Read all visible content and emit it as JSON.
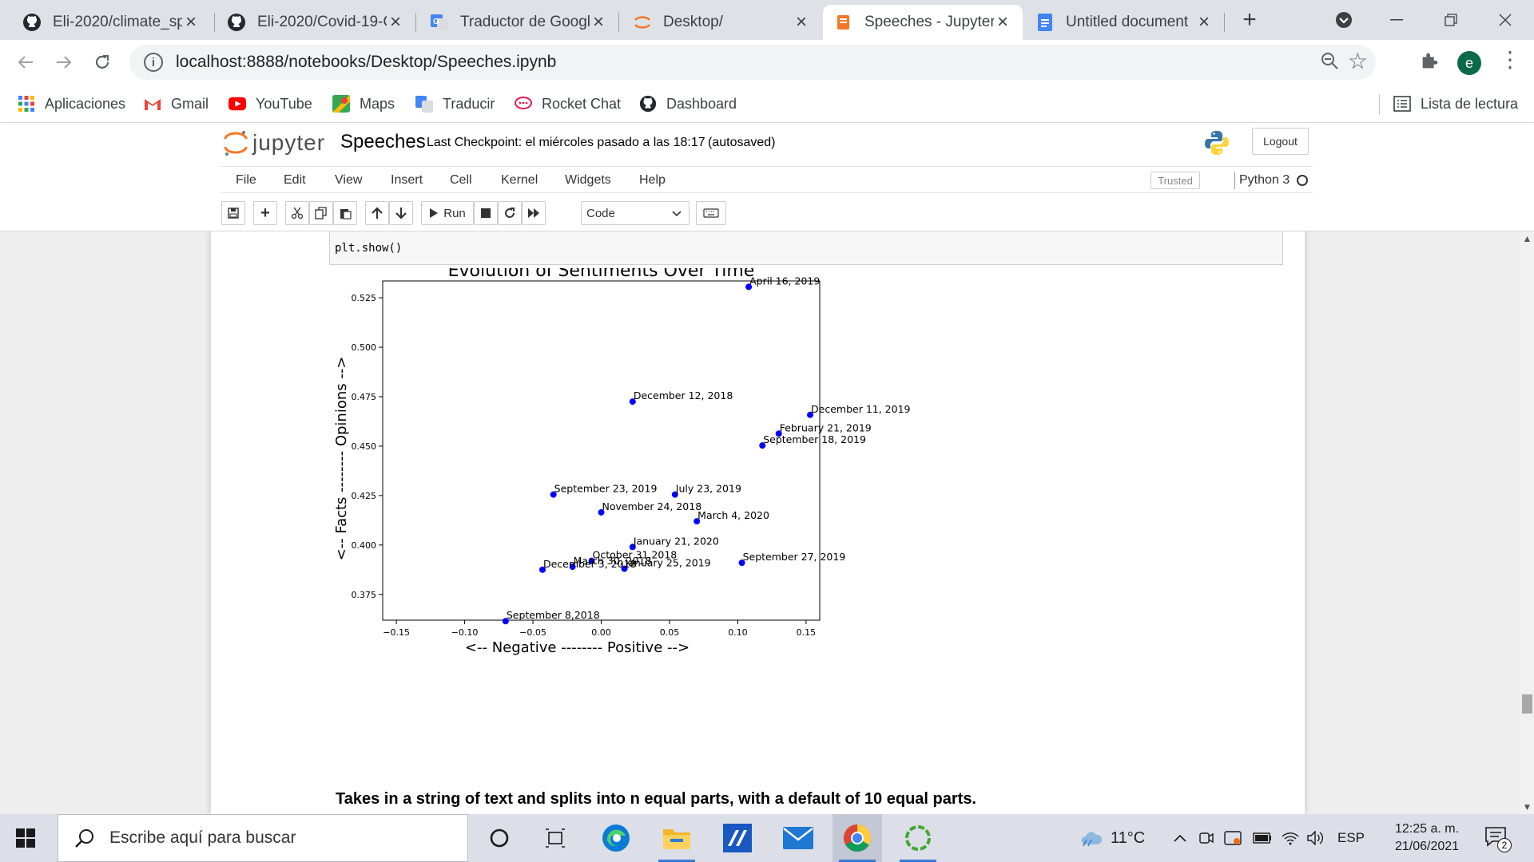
{
  "browser": {
    "tabs": [
      {
        "title": "Eli-2020/climate_sp",
        "icon": "github-icon"
      },
      {
        "title": "Eli-2020/Covid-19-C",
        "icon": "github-icon"
      },
      {
        "title": "Traductor de Googl",
        "icon": "google-translate-icon"
      },
      {
        "title": "Desktop/",
        "icon": "jupyter-icon"
      },
      {
        "title": "Speeches - Jupyter",
        "icon": "jupyter-notebook-icon"
      },
      {
        "title": "Untitled document",
        "icon": "google-docs-icon"
      }
    ],
    "url": "localhost:8888/notebooks/Desktop/Speeches.ipynb",
    "profile_initial": "e",
    "bookmarks": [
      {
        "label": "Aplicaciones",
        "icon": "apps-grid-icon"
      },
      {
        "label": "Gmail",
        "icon": "gmail-icon"
      },
      {
        "label": "YouTube",
        "icon": "youtube-icon"
      },
      {
        "label": "Maps",
        "icon": "maps-icon"
      },
      {
        "label": "Traducir",
        "icon": "translate-icon"
      },
      {
        "label": "Rocket Chat",
        "icon": "rocket-chat-icon"
      },
      {
        "label": "Dashboard",
        "icon": "github-icon"
      }
    ],
    "reading_list": "Lista de lectura"
  },
  "jupyter": {
    "logo_text": "jupyter",
    "notebook_name": "Speeches",
    "checkpoint": "Last Checkpoint: el miércoles pasado a las 18:17",
    "autosave": "(autosaved)",
    "logout": "Logout",
    "menu": [
      "File",
      "Edit",
      "View",
      "Insert",
      "Cell",
      "Kernel",
      "Widgets",
      "Help"
    ],
    "trusted": "Trusted",
    "kernel": "Python 3",
    "run_label": "Run",
    "cell_type": "Code",
    "code_line": "plt.show()",
    "markdown_text": "Takes in a string of text and splits into n equal parts, with a default of 10 equal parts."
  },
  "chart_data": {
    "type": "scatter",
    "title": "Evolution of Sentiments Over Time",
    "xlabel": "<-- Negative -------- Positive -->",
    "ylabel": "<-- Facts -------- Opinions -->",
    "xlim": [
      -0.16,
      0.16
    ],
    "ylim": [
      0.362,
      0.5335
    ],
    "xticks": [
      -0.15,
      -0.1,
      -0.05,
      0.0,
      0.05,
      0.1,
      0.15
    ],
    "xtick_labels": [
      "−0.15",
      "−0.10",
      "−0.05",
      "0.00",
      "0.05",
      "0.10",
      "0.15"
    ],
    "yticks": [
      0.375,
      0.4,
      0.425,
      0.45,
      0.475,
      0.5,
      0.525
    ],
    "ytick_labels": [
      "0.375",
      "0.400",
      "0.425",
      "0.450",
      "0.475",
      "0.500",
      "0.525"
    ],
    "color": "#0000ff",
    "points": [
      {
        "label": "April 16, 2019",
        "x": 0.108,
        "y": 0.5305
      },
      {
        "label": "December 12, 2018",
        "x": 0.023,
        "y": 0.4725
      },
      {
        "label": "December 11, 2019",
        "x": 0.153,
        "y": 0.4658
      },
      {
        "label": "February 21, 2019",
        "x": 0.13,
        "y": 0.4563
      },
      {
        "label": "September 18, 2019",
        "x": 0.118,
        "y": 0.4503
      },
      {
        "label": "September 23, 2019",
        "x": -0.035,
        "y": 0.4255
      },
      {
        "label": "July 23, 2019",
        "x": 0.054,
        "y": 0.4255
      },
      {
        "label": "November 24, 2018",
        "x": 0.0,
        "y": 0.4165
      },
      {
        "label": "March 4, 2020",
        "x": 0.07,
        "y": 0.412
      },
      {
        "label": "January 21, 2020",
        "x": 0.023,
        "y": 0.399
      },
      {
        "label": "October 31,2018",
        "x": -0.007,
        "y": 0.392
      },
      {
        "label": "March 30, 2018",
        "x": -0.021,
        "y": 0.389
      },
      {
        "label": "January 25, 2019",
        "x": 0.017,
        "y": 0.388
      },
      {
        "label": "December 3, 2018",
        "x": -0.043,
        "y": 0.3875
      },
      {
        "label": "September 27, 2019",
        "x": 0.103,
        "y": 0.391
      },
      {
        "label": "September 8,2018",
        "x": -0.07,
        "y": 0.3615
      }
    ]
  },
  "taskbar": {
    "search_placeholder": "Escribe aquí para buscar",
    "weather": "11°C",
    "language": "ESP",
    "time": "12:25 a. m.",
    "date": "21/06/2021",
    "notifications": "2"
  }
}
